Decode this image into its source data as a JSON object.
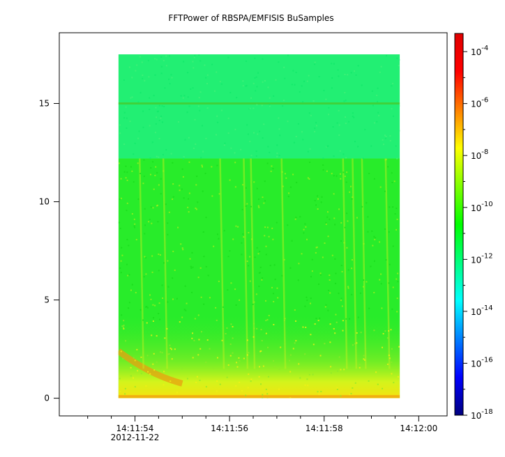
{
  "chart_data": {
    "type": "heatmap",
    "title": "FFTPower of RBSPA/EMFISIS  BuSamples",
    "xlabel": "",
    "ylabel": "",
    "x_ticks": [
      {
        "value": 54,
        "label": "14:11:54",
        "sublabel": "2012-11-22"
      },
      {
        "value": 56,
        "label": "14:11:56",
        "sublabel": ""
      },
      {
        "value": 58,
        "label": "14:11:58",
        "sublabel": ""
      },
      {
        "value": 60,
        "label": "14:12:00",
        "sublabel": ""
      }
    ],
    "x_minor_ticks": [
      53.0,
      53.5,
      54.5,
      55.0,
      55.5,
      56.5,
      57.0,
      57.5,
      58.5,
      59.0,
      59.5
    ],
    "xlim": [
      52.4,
      60.6
    ],
    "data_xrange": [
      53.65,
      59.6
    ],
    "y_ticks": [
      {
        "value": 0,
        "label": "0"
      },
      {
        "value": 5,
        "label": "5"
      },
      {
        "value": 10,
        "label": "10"
      },
      {
        "value": 15,
        "label": "15"
      }
    ],
    "ylim": [
      -0.9,
      18.6
    ],
    "data_yrange": [
      0,
      17.5
    ],
    "line_feature_y": 15.0,
    "band_boundary_y": 12.2,
    "log_scale_colorbar": true,
    "colorbar": {
      "labels": [
        {
          "exp": -4,
          "base": "10"
        },
        {
          "exp": -6,
          "base": "10"
        },
        {
          "exp": -8,
          "base": "10"
        },
        {
          "exp": -10,
          "base": "10"
        },
        {
          "exp": -12,
          "base": "10"
        },
        {
          "exp": -14,
          "base": "10"
        },
        {
          "exp": -16,
          "base": "10"
        },
        {
          "exp": -18,
          "base": "10"
        }
      ],
      "range_exp": [
        -18,
        -3.3
      ],
      "colors": [
        "#00007f",
        "#0000ff",
        "#007fff",
        "#00ffff",
        "#00ff80",
        "#00ff00",
        "#80ff00",
        "#ffff00",
        "#ff8000",
        "#ff0000",
        "#df0000"
      ]
    },
    "grid": false,
    "legend": "none"
  }
}
